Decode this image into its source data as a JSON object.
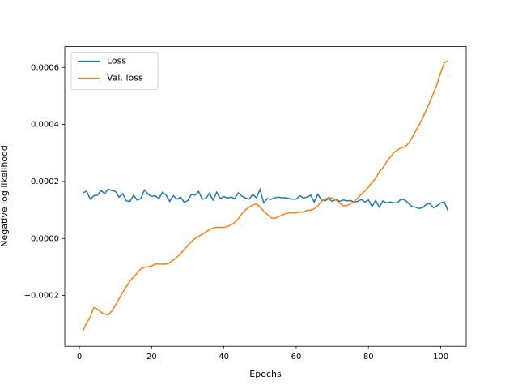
{
  "chart_data": {
    "type": "line",
    "xlabel": "Epochs",
    "ylabel": "Negative log likelihood",
    "x": [
      1,
      2,
      3,
      4,
      5,
      6,
      7,
      8,
      9,
      10,
      11,
      12,
      13,
      14,
      15,
      16,
      17,
      18,
      19,
      20,
      21,
      22,
      23,
      24,
      25,
      26,
      27,
      28,
      29,
      30,
      31,
      32,
      33,
      34,
      35,
      36,
      37,
      38,
      39,
      40,
      41,
      42,
      43,
      44,
      45,
      46,
      47,
      48,
      49,
      50,
      51,
      52,
      53,
      54,
      55,
      56,
      57,
      58,
      59,
      60,
      61,
      62,
      63,
      64,
      65,
      66,
      67,
      68,
      69,
      70,
      71,
      72,
      73,
      74,
      75,
      76,
      77,
      78,
      79,
      80,
      81,
      82,
      83,
      84,
      85,
      86,
      87,
      88,
      89,
      90,
      91,
      92,
      93,
      94,
      95,
      96,
      97,
      98,
      99,
      100,
      101,
      102
    ],
    "series": [
      {
        "name": "Loss",
        "color": "#1f77b4",
        "values": [
          0.00016,
          0.000166,
          0.000138,
          0.00015,
          0.000152,
          0.000168,
          0.000157,
          0.000173,
          0.000168,
          0.000165,
          0.000145,
          0.000157,
          0.000132,
          0.00013,
          0.000152,
          0.000135,
          0.00014,
          0.00017,
          0.000155,
          0.000148,
          0.00015,
          0.00014,
          0.000162,
          0.000152,
          0.00013,
          0.00015,
          0.000138,
          0.000145,
          0.000127,
          0.000133,
          0.000155,
          0.000152,
          0.000165,
          0.000138,
          0.00014,
          0.000158,
          0.000135,
          0.000162,
          0.00014,
          0.000147,
          0.000142,
          0.000145,
          0.00014,
          0.00016,
          0.000148,
          0.000142,
          0.000138,
          0.000155,
          0.000142,
          0.000172,
          0.000125,
          0.00014,
          0.000137,
          0.000142,
          0.000145,
          0.000143,
          0.000143,
          0.00014,
          0.000138,
          0.000138,
          0.00015,
          0.000142,
          0.000145,
          0.000152,
          0.000128,
          0.000155,
          0.000135,
          0.000132,
          0.00014,
          0.00013,
          0.000137,
          0.00013,
          0.000135,
          0.000132,
          0.000133,
          0.000128,
          0.00013,
          0.000137,
          0.000128,
          0.000135,
          0.000112,
          0.000133,
          0.00011,
          0.000132,
          0.000125,
          0.000128,
          0.000125,
          0.000125,
          0.000138,
          0.000135,
          0.000125,
          0.000112,
          0.00011,
          0.000105,
          0.000108,
          0.00012,
          0.000122,
          0.000108,
          0.000115,
          0.000125,
          0.000128,
          9.8e-05
        ]
      },
      {
        "name": "Val. loss",
        "color": "#ff7f0e",
        "values": [
          -0.000324,
          -0.000296,
          -0.000276,
          -0.000242,
          -0.000248,
          -0.000259,
          -0.000265,
          -0.000268,
          -0.000254,
          -0.000234,
          -0.000211,
          -0.000189,
          -0.000169,
          -0.000149,
          -0.000135,
          -0.000121,
          -0.000107,
          -0.000101,
          -9.9e-05,
          -9.6e-05,
          -9e-05,
          -9e-05,
          -9e-05,
          -9e-05,
          -8.5e-05,
          -7.6e-05,
          -6.5e-05,
          -5.4e-05,
          -3.9e-05,
          -2.5e-05,
          -1.1e-05,
          0,
          8e-06,
          1.4e-05,
          2.3e-05,
          3.1e-05,
          3.7e-05,
          3.9e-05,
          3.9e-05,
          3.9e-05,
          4.2e-05,
          4.8e-05,
          5.6e-05,
          7e-05,
          8.7e-05,
          0.000101,
          0.00011,
          0.000118,
          0.000121,
          0.00011,
          9.6e-05,
          8.5e-05,
          7.3e-05,
          7e-05,
          7.6e-05,
          8.2e-05,
          8.7e-05,
          9e-05,
          9e-05,
          9e-05,
          9.3e-05,
          9.3e-05,
          9.9e-05,
          9.9e-05,
          0.000104,
          0.000115,
          0.00013,
          0.000138,
          0.000144,
          0.000141,
          0.000135,
          0.000124,
          0.000115,
          0.000115,
          0.000121,
          0.00013,
          0.000141,
          0.000155,
          0.000166,
          0.00018,
          0.000197,
          0.000211,
          0.000234,
          0.000248,
          0.000268,
          0.000285,
          0.000301,
          0.00031,
          0.000318,
          0.000321,
          0.000332,
          0.000352,
          0.000375,
          0.000397,
          0.000423,
          0.000451,
          0.000479,
          0.00051,
          0.000541,
          0.000583,
          0.000617,
          0.000623
        ]
      }
    ],
    "xlim": [
      -4.05,
      107.05
    ],
    "xticks": [
      0,
      20,
      40,
      60,
      80,
      100
    ],
    "ylim": [
      -0.000378,
      0.000673
    ],
    "yticks": [
      {
        "value": -0.0002,
        "label": "−0.0002"
      },
      {
        "value": 0,
        "label": "0.0000"
      },
      {
        "value": 0.0002,
        "label": "0.0002"
      },
      {
        "value": 0.0004,
        "label": "0.0004"
      },
      {
        "value": 0.0006,
        "label": "0.0006"
      }
    ],
    "legend": "upper left",
    "grid": false
  }
}
